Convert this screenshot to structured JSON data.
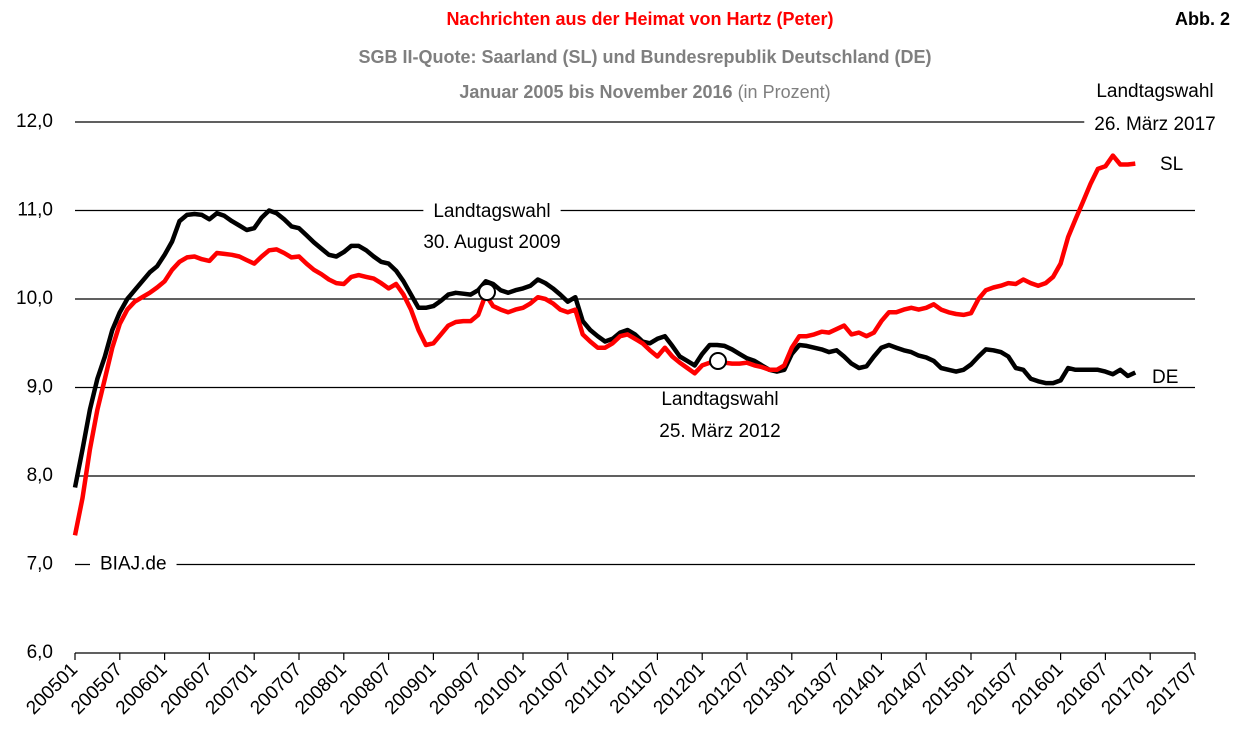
{
  "chart_data": {
    "type": "line",
    "title": "Nachrichten aus der Heimat von Hartz (Peter)",
    "figure_label": "Abb. 2",
    "subtitle": "SGB II-Quote: Saarland (SL) und Bundesrepublik Deutschland (DE)",
    "period": "Januar 2005 bis November 2016",
    "unit": "(in Prozent)",
    "source": "BIAJ.de",
    "annotations": [
      [
        "Landtagswahl",
        "30. August 2009"
      ],
      [
        "Landtagswahl",
        "25. März 2012"
      ],
      [
        "Landtagswahl",
        "26. März 2017"
      ]
    ],
    "categories": [
      "200501",
      null,
      null,
      null,
      null,
      null,
      "200507",
      null,
      null,
      null,
      null,
      null,
      "200601",
      null,
      null,
      null,
      null,
      null,
      "200607",
      null,
      null,
      null,
      null,
      null,
      "200701",
      null,
      null,
      null,
      null,
      null,
      "200707",
      null,
      null,
      null,
      null,
      null,
      "200801",
      null,
      null,
      null,
      null,
      null,
      "200807",
      null,
      null,
      null,
      null,
      null,
      "200901",
      null,
      null,
      null,
      null,
      null,
      "200907",
      null,
      null,
      null,
      null,
      null,
      "201001",
      null,
      null,
      null,
      null,
      null,
      "201007",
      null,
      null,
      null,
      null,
      null,
      "201101",
      null,
      null,
      null,
      null,
      null,
      "201107",
      null,
      null,
      null,
      null,
      null,
      "201201",
      null,
      null,
      null,
      null,
      null,
      "201207",
      null,
      null,
      null,
      null,
      null,
      "201301",
      null,
      null,
      null,
      null,
      null,
      "201307",
      null,
      null,
      null,
      null,
      null,
      "201401",
      null,
      null,
      null,
      null,
      null,
      "201407",
      null,
      null,
      null,
      null,
      null,
      "201501",
      null,
      null,
      null,
      null,
      null,
      "201507",
      null,
      null,
      null,
      null,
      null,
      "201601",
      null,
      null,
      null,
      null,
      null,
      "201607",
      null,
      null,
      null,
      null,
      null,
      "201701",
      null,
      null,
      null,
      null,
      null,
      "201707"
    ],
    "series": [
      {
        "name": "DE",
        "color": "#000000",
        "values": [
          7.87,
          8.3,
          8.75,
          9.1,
          9.35,
          9.65,
          9.85,
          10.0,
          10.1,
          10.2,
          10.3,
          10.37,
          10.5,
          10.65,
          10.88,
          10.95,
          10.96,
          10.95,
          10.9,
          10.97,
          10.94,
          10.88,
          10.83,
          10.78,
          10.8,
          10.92,
          11.0,
          10.97,
          10.9,
          10.82,
          10.8,
          10.72,
          10.64,
          10.57,
          10.5,
          10.48,
          10.53,
          10.6,
          10.6,
          10.55,
          10.48,
          10.42,
          10.4,
          10.32,
          10.2,
          10.05,
          9.9,
          9.9,
          9.92,
          9.98,
          10.05,
          10.07,
          10.06,
          10.05,
          10.1,
          10.2,
          10.17,
          10.1,
          10.07,
          10.1,
          10.12,
          10.15,
          10.22,
          10.18,
          10.12,
          10.05,
          9.97,
          10.02,
          9.75,
          9.65,
          9.58,
          9.52,
          9.55,
          9.62,
          9.65,
          9.6,
          9.52,
          9.5,
          9.55,
          9.58,
          9.47,
          9.35,
          9.3,
          9.25,
          9.38,
          9.48,
          9.48,
          9.47,
          9.43,
          9.38,
          9.33,
          9.3,
          9.25,
          9.2,
          9.18,
          9.2,
          9.38,
          9.48,
          9.47,
          9.45,
          9.43,
          9.4,
          9.42,
          9.35,
          9.27,
          9.22,
          9.24,
          9.35,
          9.45,
          9.48,
          9.45,
          9.42,
          9.4,
          9.36,
          9.34,
          9.3,
          9.22,
          9.2,
          9.18,
          9.2,
          9.26,
          9.35,
          9.43,
          9.42,
          9.4,
          9.35,
          9.22,
          9.2,
          9.1,
          9.07,
          9.05,
          9.05,
          9.08,
          9.22,
          9.2,
          9.2,
          9.2,
          9.2,
          9.18,
          9.15,
          9.2,
          9.13,
          9.17,
          null,
          null,
          null,
          null,
          null,
          null,
          null,
          null
        ]
      },
      {
        "name": "SL",
        "color": "#ff0000",
        "values": [
          7.33,
          7.75,
          8.3,
          8.75,
          9.1,
          9.45,
          9.72,
          9.88,
          9.97,
          10.02,
          10.07,
          10.13,
          10.2,
          10.33,
          10.42,
          10.47,
          10.48,
          10.45,
          10.43,
          10.52,
          10.51,
          10.5,
          10.48,
          10.44,
          10.4,
          10.48,
          10.55,
          10.56,
          10.52,
          10.47,
          10.48,
          10.4,
          10.33,
          10.28,
          10.22,
          10.18,
          10.17,
          10.25,
          10.27,
          10.25,
          10.23,
          10.18,
          10.12,
          10.17,
          10.05,
          9.88,
          9.65,
          9.48,
          9.5,
          9.6,
          9.7,
          9.74,
          9.75,
          9.75,
          9.82,
          10.05,
          9.92,
          9.88,
          9.85,
          9.88,
          9.9,
          9.95,
          10.02,
          10.0,
          9.95,
          9.88,
          9.85,
          9.88,
          9.6,
          9.52,
          9.45,
          9.45,
          9.5,
          9.58,
          9.6,
          9.55,
          9.5,
          9.42,
          9.35,
          9.45,
          9.35,
          9.28,
          9.22,
          9.16,
          9.25,
          9.28,
          9.28,
          9.28,
          9.27,
          9.27,
          9.28,
          9.25,
          9.23,
          9.2,
          9.2,
          9.25,
          9.45,
          9.58,
          9.58,
          9.6,
          9.63,
          9.62,
          9.66,
          9.7,
          9.6,
          9.62,
          9.58,
          9.62,
          9.75,
          9.85,
          9.85,
          9.88,
          9.9,
          9.88,
          9.9,
          9.94,
          9.88,
          9.85,
          9.83,
          9.82,
          9.84,
          10.0,
          10.1,
          10.13,
          10.15,
          10.18,
          10.17,
          10.22,
          10.18,
          10.15,
          10.18,
          10.25,
          10.4,
          10.7,
          10.9,
          11.1,
          11.3,
          11.47,
          11.5,
          11.62,
          11.52,
          11.52,
          11.53,
          null,
          null,
          null,
          null,
          null,
          null,
          null,
          null
        ]
      }
    ],
    "ylim": [
      6,
      12
    ],
    "yticks": [
      {
        "value": 6,
        "label": "6,0"
      },
      {
        "value": 7,
        "label": "7,0"
      },
      {
        "value": 8,
        "label": "8,0"
      },
      {
        "value": 9,
        "label": "9,0"
      },
      {
        "value": 10,
        "label": "10,0"
      },
      {
        "value": 11,
        "label": "11,0"
      },
      {
        "value": 12,
        "label": "12,0"
      }
    ],
    "grid": true
  }
}
